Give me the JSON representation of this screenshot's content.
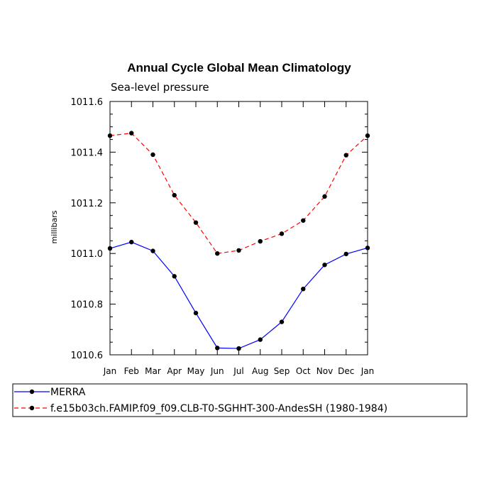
{
  "chart_data": {
    "type": "line",
    "title": "Annual Cycle Global Mean Climatology",
    "subtitle": "Sea-level pressure",
    "ylabel": "millibars",
    "xlabel": "",
    "categories": [
      "Jan",
      "Feb",
      "Mar",
      "Apr",
      "May",
      "Jun",
      "Jul",
      "Aug",
      "Sep",
      "Oct",
      "Nov",
      "Dec",
      "Jan"
    ],
    "ylim": [
      1010.6,
      1011.6
    ],
    "yticks": [
      "1010.6",
      "1010.8",
      "1011.0",
      "1011.2",
      "1011.4",
      "1011.6"
    ],
    "series": [
      {
        "name": "MERRA",
        "color": "#0000ff",
        "dash": "solid",
        "values": [
          1011.02,
          1011.045,
          1011.01,
          1010.91,
          1010.765,
          1010.627,
          1010.625,
          1010.66,
          1010.73,
          1010.86,
          1010.955,
          1010.998,
          1011.022
        ]
      },
      {
        "name": "f.e15b03ch.FAMIP.f09_f09.CLB-T0-SGHHT-300-AndesSH (1980-1984)",
        "color": "#ff0000",
        "dash": "dashed",
        "values": [
          1011.465,
          1011.475,
          1011.39,
          1011.23,
          1011.122,
          1011.0,
          1011.012,
          1011.048,
          1011.078,
          1011.13,
          1011.225,
          1011.388,
          1011.465
        ]
      }
    ],
    "legend_position": "bottom"
  }
}
